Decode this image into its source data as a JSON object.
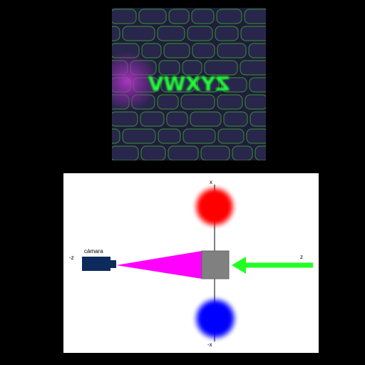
{
  "texture_image": {
    "description_icon": "stone-wall-texture",
    "mirrored_text": "ZYXWV",
    "colors": {
      "background": "#201e3c",
      "stones": "#2a2850",
      "edges": "#3fae3c",
      "glow": "#b233c6",
      "text": "#21ff36"
    }
  },
  "diagram": {
    "labels": {
      "x_axis_top": "x",
      "x_axis_bottom": "-x",
      "z_positive": "z",
      "z_negative": "-z",
      "camera": "cámara"
    },
    "colors": {
      "background": "#ffffff",
      "axis": "#000000",
      "red_blob": "#ff0000",
      "blue_blob": "#0000ff",
      "object": "#808080",
      "camera": "#0d2a5c",
      "frustum": "#ff00ff",
      "arrow": "#22ff22"
    }
  }
}
